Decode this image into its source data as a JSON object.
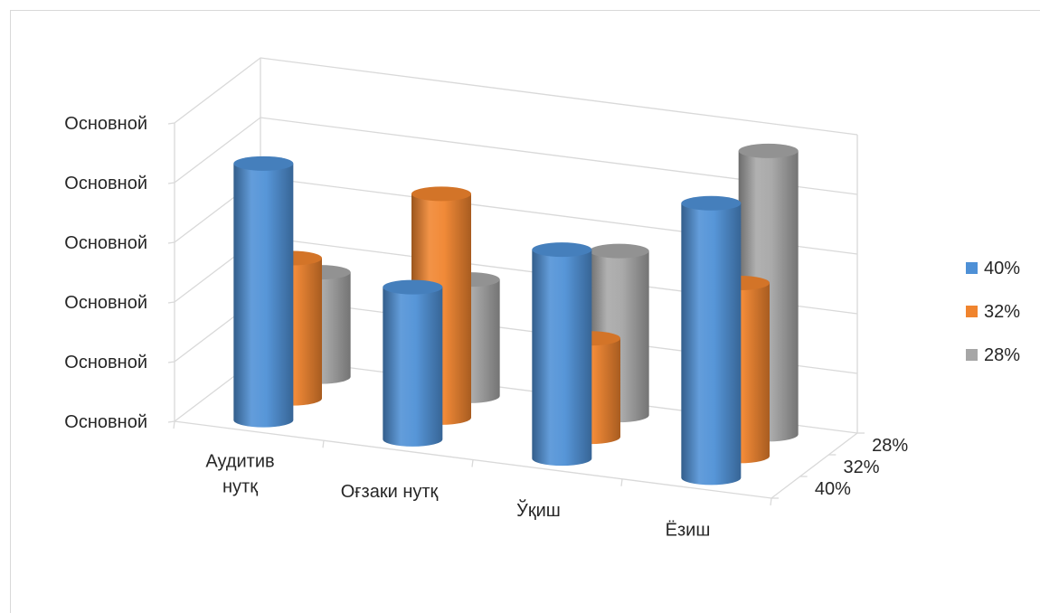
{
  "chart_data": {
    "type": "bar",
    "style": "3d-cylinder",
    "categories": [
      "Аудитив\nнутқ",
      "Оғзаки нутқ",
      "Ўқиш",
      "Ёзиш"
    ],
    "series": [
      {
        "name": "40%",
        "color": "#4e90d6",
        "values": [
          4.3,
          2.55,
          3.5,
          4.6
        ]
      },
      {
        "name": "32%",
        "color": "#f0842e",
        "values": [
          2.35,
          3.75,
          1.65,
          2.9
        ]
      },
      {
        "name": "28%",
        "color": "#a6a6a6",
        "values": [
          1.75,
          1.95,
          2.75,
          4.75
        ]
      }
    ],
    "depth_labels": [
      "40%",
      "32%",
      "28%"
    ],
    "y_tick_labels": [
      "Основной",
      "Основной",
      "Основной",
      "Основной",
      "Основной",
      "Основной"
    ],
    "ylim": [
      0,
      5
    ],
    "grid": true,
    "legend": {
      "position": "right",
      "entries": [
        "40%",
        "32%",
        "28%"
      ]
    }
  }
}
